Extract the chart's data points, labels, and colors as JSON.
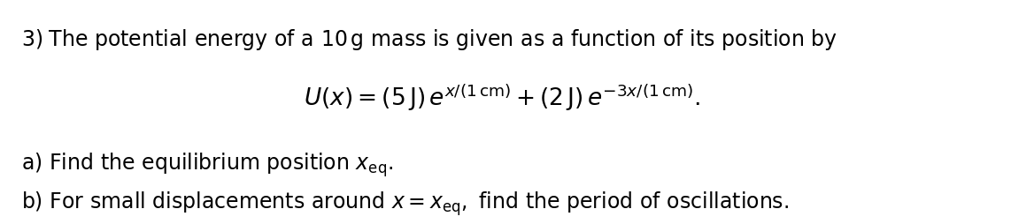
{
  "line1": "3)\\; \\text{The potential energy of a }10\\,\\text{g mass is given as a function of its position by}",
  "line2": "U(x) = (5\\,\\text{J})\\, e^{x/(1\\,\\text{cm})} + (2\\,\\text{J})\\, e^{-3x/(1\\,\\text{cm})}.",
  "line3a": "\\text{a) Find the equilibrium position }x_{\\text{eq}}\\text{.}",
  "line3b": "\\text{b) For small displacements around }x = x_{\\text{eq}}\\text{, find the period of oscillations.}",
  "background_color": "#ffffff",
  "text_color": "#000000",
  "fontsize_main": 17,
  "fontsize_eq": 19
}
